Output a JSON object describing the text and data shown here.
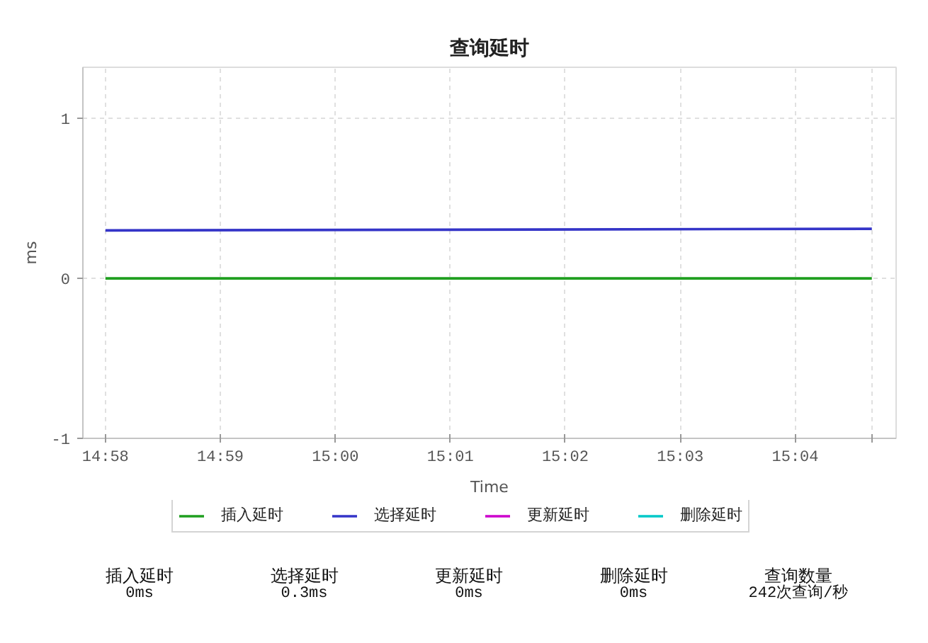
{
  "chart_data": [
    {
      "type": "line",
      "title": "查询延时",
      "xlabel": "Time",
      "ylabel": "ms",
      "x": [
        14.966667,
        15.07778
      ],
      "series": [
        {
          "name": "插入延时",
          "color": "#1f9f1f",
          "values": [
            0,
            0
          ]
        },
        {
          "name": "选择延时",
          "color": "#3535c8",
          "values": [
            0.3,
            0.31
          ]
        },
        {
          "name": "更新延时",
          "color": "#cc00cc",
          "values": [
            null,
            null
          ]
        },
        {
          "name": "删除延时",
          "color": "#00c8c8",
          "values": [
            null,
            null
          ]
        }
      ],
      "xlim": [
        14.9634,
        15.0813
      ],
      "xticks": [
        {
          "value": 14.966667,
          "label": "14:58"
        },
        {
          "value": 14.983333,
          "label": "14:59"
        },
        {
          "value": 15.0,
          "label": "15:00"
        },
        {
          "value": 15.016667,
          "label": "15:01"
        },
        {
          "value": 15.033333,
          "label": "15:02"
        },
        {
          "value": 15.05,
          "label": "15:03"
        },
        {
          "value": 15.066667,
          "label": "15:04"
        },
        {
          "value": 15.07778,
          "label": null
        }
      ],
      "ylim": [
        -1,
        1.32
      ],
      "yticks": [
        -1,
        0,
        1
      ],
      "grid": true,
      "legend": "bottom"
    },
    {
      "type": "other",
      "annotations": [
        "插入延时",
        "0ms",
        "选择延时",
        "0.3ms",
        "更新延时",
        "0ms",
        "删除延时",
        "0ms",
        "查询数量",
        "242次查询/秒"
      ]
    }
  ]
}
